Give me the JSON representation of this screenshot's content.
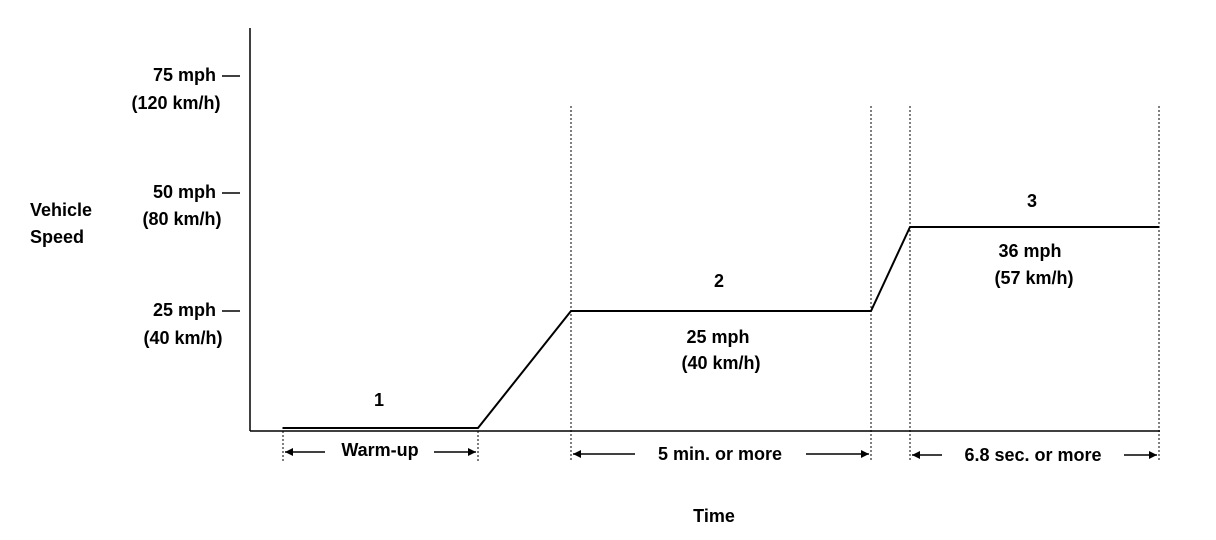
{
  "y_axis": {
    "title": [
      "Vehicle",
      "Speed"
    ],
    "ticks": [
      {
        "mph": 75,
        "label": "75 mph",
        "kmh_label": "(120 km/h)"
      },
      {
        "mph": 50,
        "label": "50 mph",
        "kmh_label": "(80 km/h)"
      },
      {
        "mph": 25,
        "label": "25 mph",
        "kmh_label": "(40 km/h)"
      }
    ]
  },
  "x_axis": {
    "title": "Time"
  },
  "phases": [
    {
      "number": "1",
      "duration_label": "Warm-up",
      "speed_mph": 0
    },
    {
      "number": "2",
      "duration_label": "5 min. or more",
      "speed_mph": 25,
      "speed_label": "25 mph",
      "speed_kmh_label": "(40 km/h)"
    },
    {
      "number": "3",
      "duration_label": "6.8 sec. or more",
      "speed_mph": 36,
      "speed_label": "36 mph",
      "speed_kmh_label": "(57 km/h)"
    }
  ],
  "colors": {
    "line": "#000000",
    "background": "#ffffff"
  }
}
